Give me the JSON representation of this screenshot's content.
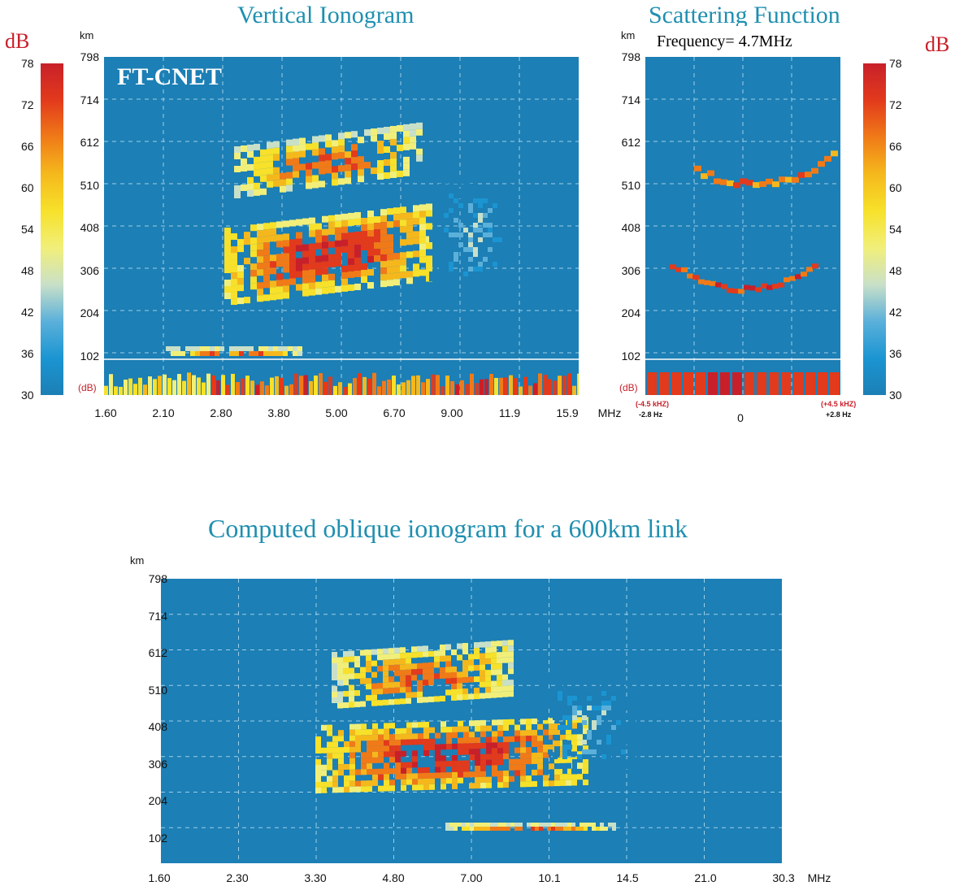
{
  "unit_db": "dB",
  "colors": {
    "background": "#1c7fb5",
    "grid": "#9ecfe8",
    "title": "#1f8fb0",
    "db_label": "#c8202a"
  },
  "colorbar": {
    "ticks": [
      "78",
      "72",
      "66",
      "60",
      "54",
      "48",
      "42",
      "36",
      "30"
    ],
    "stops": [
      "#c8202a",
      "#e23a1c",
      "#f07a18",
      "#f5b81c",
      "#f7e12a",
      "#f1ef7a",
      "#c9e0c8",
      "#5bb0da",
      "#1b95d2",
      "#1c7fb5"
    ]
  },
  "chart_data": [
    {
      "type": "heatmap",
      "title": "Vertical Ionogram",
      "brand_label": "FT-CNET",
      "ylabel": "km",
      "y_ticks": [
        "798",
        "714",
        "612",
        "510",
        "408",
        "306",
        "204",
        "102"
      ],
      "x_ticks": [
        "1.60",
        "2.10",
        "2.80",
        "3.80",
        "5.00",
        "6.70",
        "9.00",
        "11.9",
        "15.9"
      ],
      "x_unit": "MHz",
      "db_strip_label": "(dB)",
      "zlabel": "dB",
      "zlim": [
        30,
        78
      ],
      "echo_regions": [
        {
          "layer": "F2",
          "x_range": [
            "2.80",
            "6.70"
          ],
          "height_km": [
            480,
            600
          ],
          "peak_db": 72
        },
        {
          "layer": "F1",
          "x_range": [
            "2.80",
            "6.70"
          ],
          "height_km": [
            230,
            330
          ],
          "peak_db": 78
        },
        {
          "layer": "E",
          "x_range": [
            "2.10",
            "3.80"
          ],
          "height_km": [
            100,
            110
          ],
          "peak_db": 72
        }
      ]
    },
    {
      "type": "heatmap",
      "title": "Scattering Function",
      "subtitle": "Frequency= 4.7MHz",
      "ylabel": "km",
      "y_ticks": [
        "798",
        "714",
        "612",
        "510",
        "408",
        "306",
        "204",
        "102"
      ],
      "x_left_label_red": "(-4.5 kHZ)",
      "x_left_label": "-2.8 Hz",
      "x_center_label": "0",
      "x_right_label_red": "(+4.5 kHZ)",
      "x_right_label": "+2.8 Hz",
      "db_strip_label": "(dB)",
      "zlabel": "dB",
      "zlim": [
        30,
        78
      ],
      "echo_regions": [
        {
          "layer": "upper",
          "height_km": [
            490,
            560
          ],
          "peak_db": 66
        },
        {
          "layer": "lower",
          "height_km": [
            240,
            320
          ],
          "peak_db": 72
        }
      ]
    },
    {
      "type": "heatmap",
      "title": "Computed oblique ionogram for a 600km link",
      "ylabel": "km",
      "y_ticks": [
        "798",
        "714",
        "612",
        "510",
        "408",
        "306",
        "204",
        "102"
      ],
      "x_ticks": [
        "1.60",
        "2.30",
        "3.30",
        "4.80",
        "7.00",
        "10.1",
        "14.5",
        "21.0",
        "30.3"
      ],
      "x_unit": "MHz",
      "zlabel": "dB",
      "zlim": [
        30,
        78
      ],
      "echo_regions": [
        {
          "layer": "F2",
          "x_range": [
            "4.80",
            "10.1"
          ],
          "height_km": [
            480,
            600
          ],
          "peak_db": 72
        },
        {
          "layer": "F1",
          "x_range": [
            "3.30",
            "14.5"
          ],
          "height_km": [
            220,
            340
          ],
          "peak_db": 78
        },
        {
          "layer": "E",
          "x_range": [
            "7.00",
            "14.5"
          ],
          "height_km": [
            95,
            110
          ],
          "peak_db": 72
        }
      ]
    }
  ]
}
